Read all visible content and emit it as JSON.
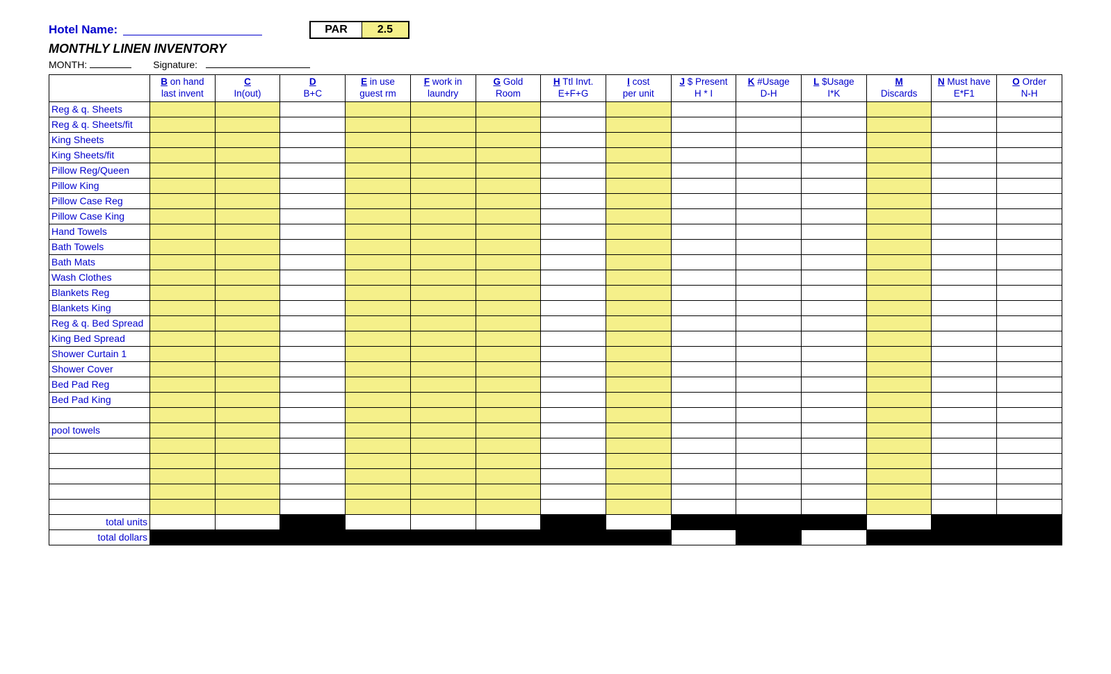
{
  "header": {
    "hotel_name_label": "Hotel Name:",
    "subtitle": "MONTHLY LINEN INVENTORY",
    "month_label": "MONTH:",
    "signature_label": "Signature:",
    "par_label": "PAR",
    "par_value": "2.5"
  },
  "colors": {
    "highlight": "#f5f08a",
    "link_blue": "#0000cc",
    "black": "#000000",
    "white": "#ffffff"
  },
  "columns": [
    {
      "lead": "B",
      "rest": " on hand",
      "sub": "last invent"
    },
    {
      "lead": "C",
      "rest": "",
      "sub": "In(out)"
    },
    {
      "lead": "D",
      "rest": "",
      "sub": "B+C"
    },
    {
      "lead": "E",
      "rest": " in use",
      "sub": "guest rm"
    },
    {
      "lead": "F",
      "rest": " work in",
      "sub": "laundry"
    },
    {
      "lead": "G",
      "rest": " Gold",
      "sub": "Room"
    },
    {
      "lead": "H",
      "rest": " Ttl Invt.",
      "sub": "E+F+G"
    },
    {
      "lead": "I",
      "rest": " cost",
      "sub": "per unit"
    },
    {
      "lead": "J",
      "rest": " $ Present",
      "sub": "H * I"
    },
    {
      "lead": "K",
      "rest": " #Usage",
      "sub": "D-H"
    },
    {
      "lead": "L",
      "rest": " $Usage",
      "sub": "I*K"
    },
    {
      "lead": "M",
      "rest": "",
      "sub": "Discards"
    },
    {
      "lead": "N",
      "rest": " Must have",
      "sub": "E*F1"
    },
    {
      "lead": "O",
      "rest": " Order",
      "sub": "N-H"
    }
  ],
  "column_fill": [
    "yellow",
    "yellow",
    "white",
    "yellow",
    "yellow",
    "yellow",
    "white",
    "yellow",
    "white",
    "white",
    "white",
    "yellow",
    "white",
    "white"
  ],
  "rows": [
    "Reg & q. Sheets",
    "Reg & q.  Sheets/fit",
    "King Sheets",
    "King Sheets/fit",
    "Pillow Reg/Queen",
    "Pillow King",
    "Pillow Case Reg",
    "Pillow Case King",
    "Hand Towels",
    "Bath Towels",
    "Bath Mats",
    "Wash Clothes",
    "Blankets Reg",
    "Blankets King",
    "Reg & q. Bed Spread",
    "King Bed Spread",
    "Shower Curtain 1",
    "Shower Cover",
    "Bed Pad  Reg",
    "Bed Pad King",
    "",
    "pool towels",
    "",
    "",
    "",
    "",
    ""
  ],
  "totals": {
    "units_label": "total units",
    "dollars_label": "total dollars",
    "units_fill": [
      "white",
      "white",
      "black",
      "white",
      "white",
      "white",
      "black",
      "white",
      "black",
      "black",
      "black",
      "white",
      "black",
      "black"
    ],
    "dollars_fill": [
      "black",
      "black",
      "black",
      "black",
      "black",
      "black",
      "black",
      "black",
      "white",
      "black",
      "white",
      "black",
      "black",
      "black"
    ]
  }
}
